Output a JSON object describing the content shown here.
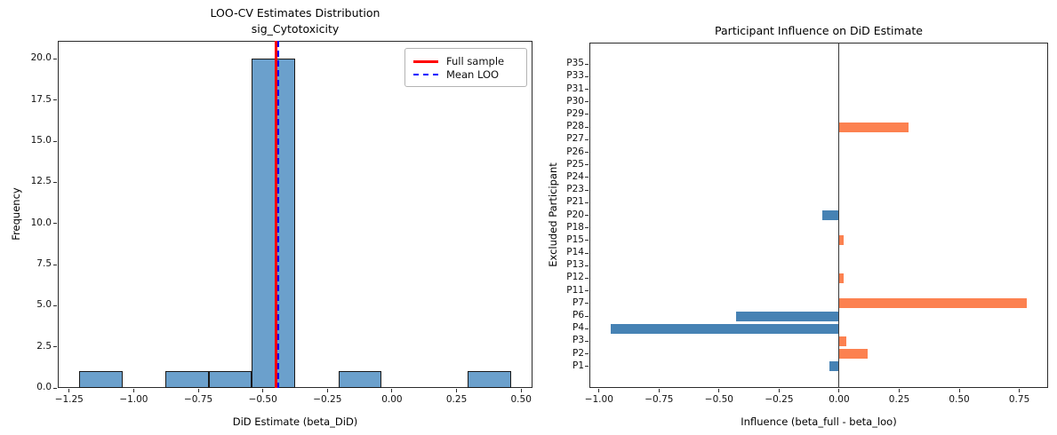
{
  "figure": {
    "background": "#ffffff"
  },
  "left_chart": {
    "title_line1": "LOO-CV Estimates Distribution",
    "title_line2": "sig_Cytotoxicity",
    "xlabel": "DiD Estimate (beta_DiD)",
    "ylabel": "Frequency",
    "legend": {
      "full_sample_label": "Full sample",
      "mean_loo_label": "Mean LOO"
    }
  },
  "right_chart": {
    "title": "Participant Influence on DiD Estimate",
    "xlabel": "Influence (beta_full - beta_loo)",
    "ylabel": "Excluded Participant"
  },
  "colors": {
    "hist_fill": "#6ba0cc",
    "hist_edge": "#1a1a1a",
    "full_sample_line": "#ff0000",
    "mean_loo_line": "#0000ff",
    "positive_bar": "#fc8150",
    "negative_bar": "#4682b4",
    "zero_line": "#3a3a3a",
    "spine": "#2b2b2b"
  },
  "chart_data": [
    {
      "type": "bar",
      "subtype": "histogram",
      "title": "LOO-CV Estimates Distribution — sig_Cytotoxicity",
      "xlabel": "DiD Estimate (beta_DiD)",
      "ylabel": "Frequency",
      "bin_edges": [
        -1.21,
        -1.043,
        -0.876,
        -0.709,
        -0.542,
        -0.375,
        -0.208,
        -0.041,
        0.126,
        0.293,
        0.46
      ],
      "counts": [
        1,
        0,
        1,
        1,
        20,
        0,
        1,
        0,
        0,
        1
      ],
      "vlines": {
        "full_sample": -0.45,
        "mean_loo": -0.44
      },
      "xlim": [
        -1.294,
        0.544
      ],
      "ylim": [
        0,
        21.1
      ],
      "xticks": [
        -1.25,
        -1.0,
        -0.75,
        -0.5,
        -0.25,
        0.0,
        0.25,
        0.5
      ],
      "xtick_labels": [
        "−1.25",
        "−1.00",
        "−0.75",
        "−0.50",
        "−0.25",
        "0.00",
        "0.25",
        "0.50"
      ],
      "yticks": [
        0,
        2.5,
        5,
        7.5,
        10,
        12.5,
        15,
        17.5,
        20
      ],
      "ytick_labels": [
        "0.0",
        "2.5",
        "5.0",
        "7.5",
        "10.0",
        "12.5",
        "15.0",
        "17.5",
        "20.0"
      ],
      "legend": [
        "Full sample",
        "Mean LOO"
      ],
      "legend_position": "upper right",
      "grid": false
    },
    {
      "type": "bar",
      "orientation": "horizontal",
      "title": "Participant Influence on DiD Estimate",
      "xlabel": "Influence (beta_full - beta_loo)",
      "ylabel": "Excluded Participant",
      "categories_top_to_bottom": [
        "P35",
        "P33",
        "P31",
        "P30",
        "P29",
        "P28",
        "P27",
        "P26",
        "P25",
        "P24",
        "P23",
        "P21",
        "P20",
        "P18",
        "P15",
        "P14",
        "P13",
        "P12",
        "P11",
        "P7",
        "P6",
        "P4",
        "P3",
        "P2",
        "P1"
      ],
      "values_top_to_bottom": [
        0,
        0,
        0,
        0,
        0,
        0.29,
        0,
        0,
        0,
        0,
        0,
        0,
        -0.07,
        0,
        0.02,
        0,
        0,
        0.02,
        0,
        0.78,
        -0.43,
        -0.95,
        0.03,
        0.12,
        -0.04
      ],
      "xlim": [
        -1.04,
        0.87
      ],
      "xticks": [
        -1.0,
        -0.75,
        -0.5,
        -0.25,
        0.0,
        0.25,
        0.5,
        0.75
      ],
      "xtick_labels": [
        "−1.00",
        "−0.75",
        "−0.50",
        "−0.25",
        "0.00",
        "0.25",
        "0.50",
        "0.75"
      ],
      "grid": false
    }
  ]
}
